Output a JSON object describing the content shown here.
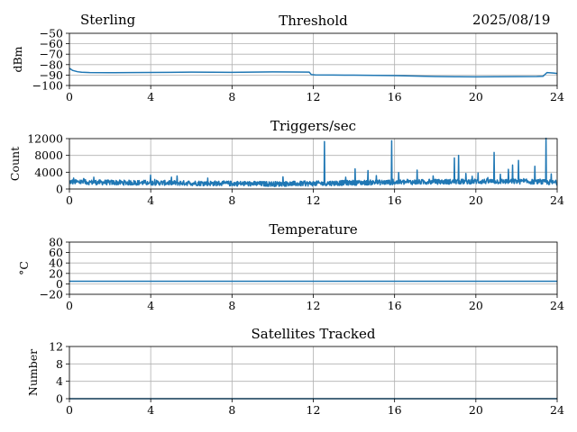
{
  "header": {
    "site": "Sterling",
    "date": "2025/08/19"
  },
  "chart_data": [
    {
      "type": "line",
      "title": "Threshold",
      "xlabel": "",
      "ylabel": "dBm",
      "xlim": [
        0,
        24
      ],
      "ylim": [
        -100,
        -50
      ],
      "xticks": [
        0,
        4,
        8,
        12,
        16,
        20,
        24
      ],
      "yticks": [
        -100,
        -90,
        -80,
        -70,
        -60,
        -50
      ],
      "ytick_labels": [
        "−100",
        "−90",
        "−80",
        "−70",
        "−60",
        "−50"
      ],
      "grid": true,
      "series": [
        {
          "color": "#1f77b4",
          "x": [
            0,
            0.15,
            0.4,
            0.6,
            1,
            2,
            3,
            4,
            5,
            6,
            7,
            8,
            9,
            10,
            11,
            11.8,
            11.9,
            12.1,
            13,
            14,
            15,
            16,
            17,
            18,
            19,
            20,
            21,
            22,
            23,
            23.3,
            23.5,
            23.8,
            24
          ],
          "y": [
            -83.5,
            -85.5,
            -86.8,
            -87.3,
            -87.6,
            -87.7,
            -87.6,
            -87.5,
            -87.4,
            -87.2,
            -87.3,
            -87.4,
            -87.2,
            -87.0,
            -87.1,
            -87.2,
            -89.5,
            -89.9,
            -90.0,
            -90.1,
            -90.3,
            -90.5,
            -91.0,
            -91.4,
            -91.6,
            -91.7,
            -91.6,
            -91.5,
            -91.4,
            -91.2,
            -87.6,
            -88.0,
            -88.5
          ]
        }
      ]
    },
    {
      "type": "line",
      "title": "Triggers/sec",
      "xlabel": "",
      "ylabel": "Count",
      "xlim": [
        0,
        24
      ],
      "ylim": [
        0,
        12000
      ],
      "xticks": [
        0,
        4,
        8,
        12,
        16,
        20,
        24
      ],
      "yticks": [
        0,
        4000,
        8000,
        12000
      ],
      "ytick_labels": [
        "0",
        "4000",
        "8000",
        "12000"
      ],
      "grid": true,
      "series": [
        {
          "color": "#1f77b4",
          "baseline": [
            [
              0,
              1700
            ],
            [
              1,
              1600
            ],
            [
              3,
              1500
            ],
            [
              4,
              1500
            ],
            [
              6,
              1400
            ],
            [
              8,
              1300
            ],
            [
              10,
              1200
            ],
            [
              12,
              1300
            ],
            [
              14,
              1500
            ],
            [
              16,
              1600
            ],
            [
              18,
              1700
            ],
            [
              20,
              1800
            ],
            [
              22,
              1800
            ],
            [
              23,
              1700
            ],
            [
              24,
              1500
            ]
          ],
          "noise_amplitude": 600,
          "spikes": [
            [
              0.2,
              2600
            ],
            [
              0.7,
              2500
            ],
            [
              1.2,
              2800
            ],
            [
              4,
              3300
            ],
            [
              5.3,
              3100
            ],
            [
              6.8,
              2600
            ],
            [
              10.5,
              2900
            ],
            [
              12.55,
              11300
            ],
            [
              13.6,
              2800
            ],
            [
              14.05,
              4800
            ],
            [
              14.7,
              4400
            ],
            [
              15.1,
              3200
            ],
            [
              15.85,
              11500
            ],
            [
              16.2,
              3900
            ],
            [
              17.1,
              4500
            ],
            [
              17.9,
              3100
            ],
            [
              18.95,
              7400
            ],
            [
              19.15,
              8000
            ],
            [
              19.5,
              3700
            ],
            [
              20.1,
              3800
            ],
            [
              20.9,
              8700
            ],
            [
              21.2,
              3500
            ],
            [
              21.6,
              4700
            ],
            [
              21.8,
              5700
            ],
            [
              22.1,
              6800
            ],
            [
              22.9,
              5400
            ],
            [
              23.45,
              12200
            ],
            [
              23.7,
              3600
            ]
          ]
        }
      ]
    },
    {
      "type": "line",
      "title": "Temperature",
      "xlabel": "",
      "ylabel": "°C",
      "xlim": [
        0,
        24
      ],
      "ylim": [
        -20,
        80
      ],
      "xticks": [
        0,
        4,
        8,
        12,
        16,
        20,
        24
      ],
      "yticks": [
        -20,
        0,
        20,
        40,
        60,
        80
      ],
      "ytick_labels": [
        "−20",
        "0",
        "20",
        "40",
        "60",
        "80"
      ],
      "grid": true,
      "series": [
        {
          "color": "#1f77b4",
          "x": [
            0,
            24
          ],
          "y": [
            5,
            5
          ]
        }
      ]
    },
    {
      "type": "line",
      "title": "Satellites Tracked",
      "xlabel": "",
      "ylabel": "Number",
      "xlim": [
        0,
        24
      ],
      "ylim": [
        0,
        12
      ],
      "xticks": [
        0,
        4,
        8,
        12,
        16,
        20,
        24
      ],
      "yticks": [
        0,
        4,
        8,
        12
      ],
      "ytick_labels": [
        "0",
        "4",
        "8",
        "12"
      ],
      "grid": true,
      "series": [
        {
          "color": "#1f77b4",
          "x": [
            0,
            24
          ],
          "y": [
            0,
            0
          ]
        }
      ]
    }
  ]
}
